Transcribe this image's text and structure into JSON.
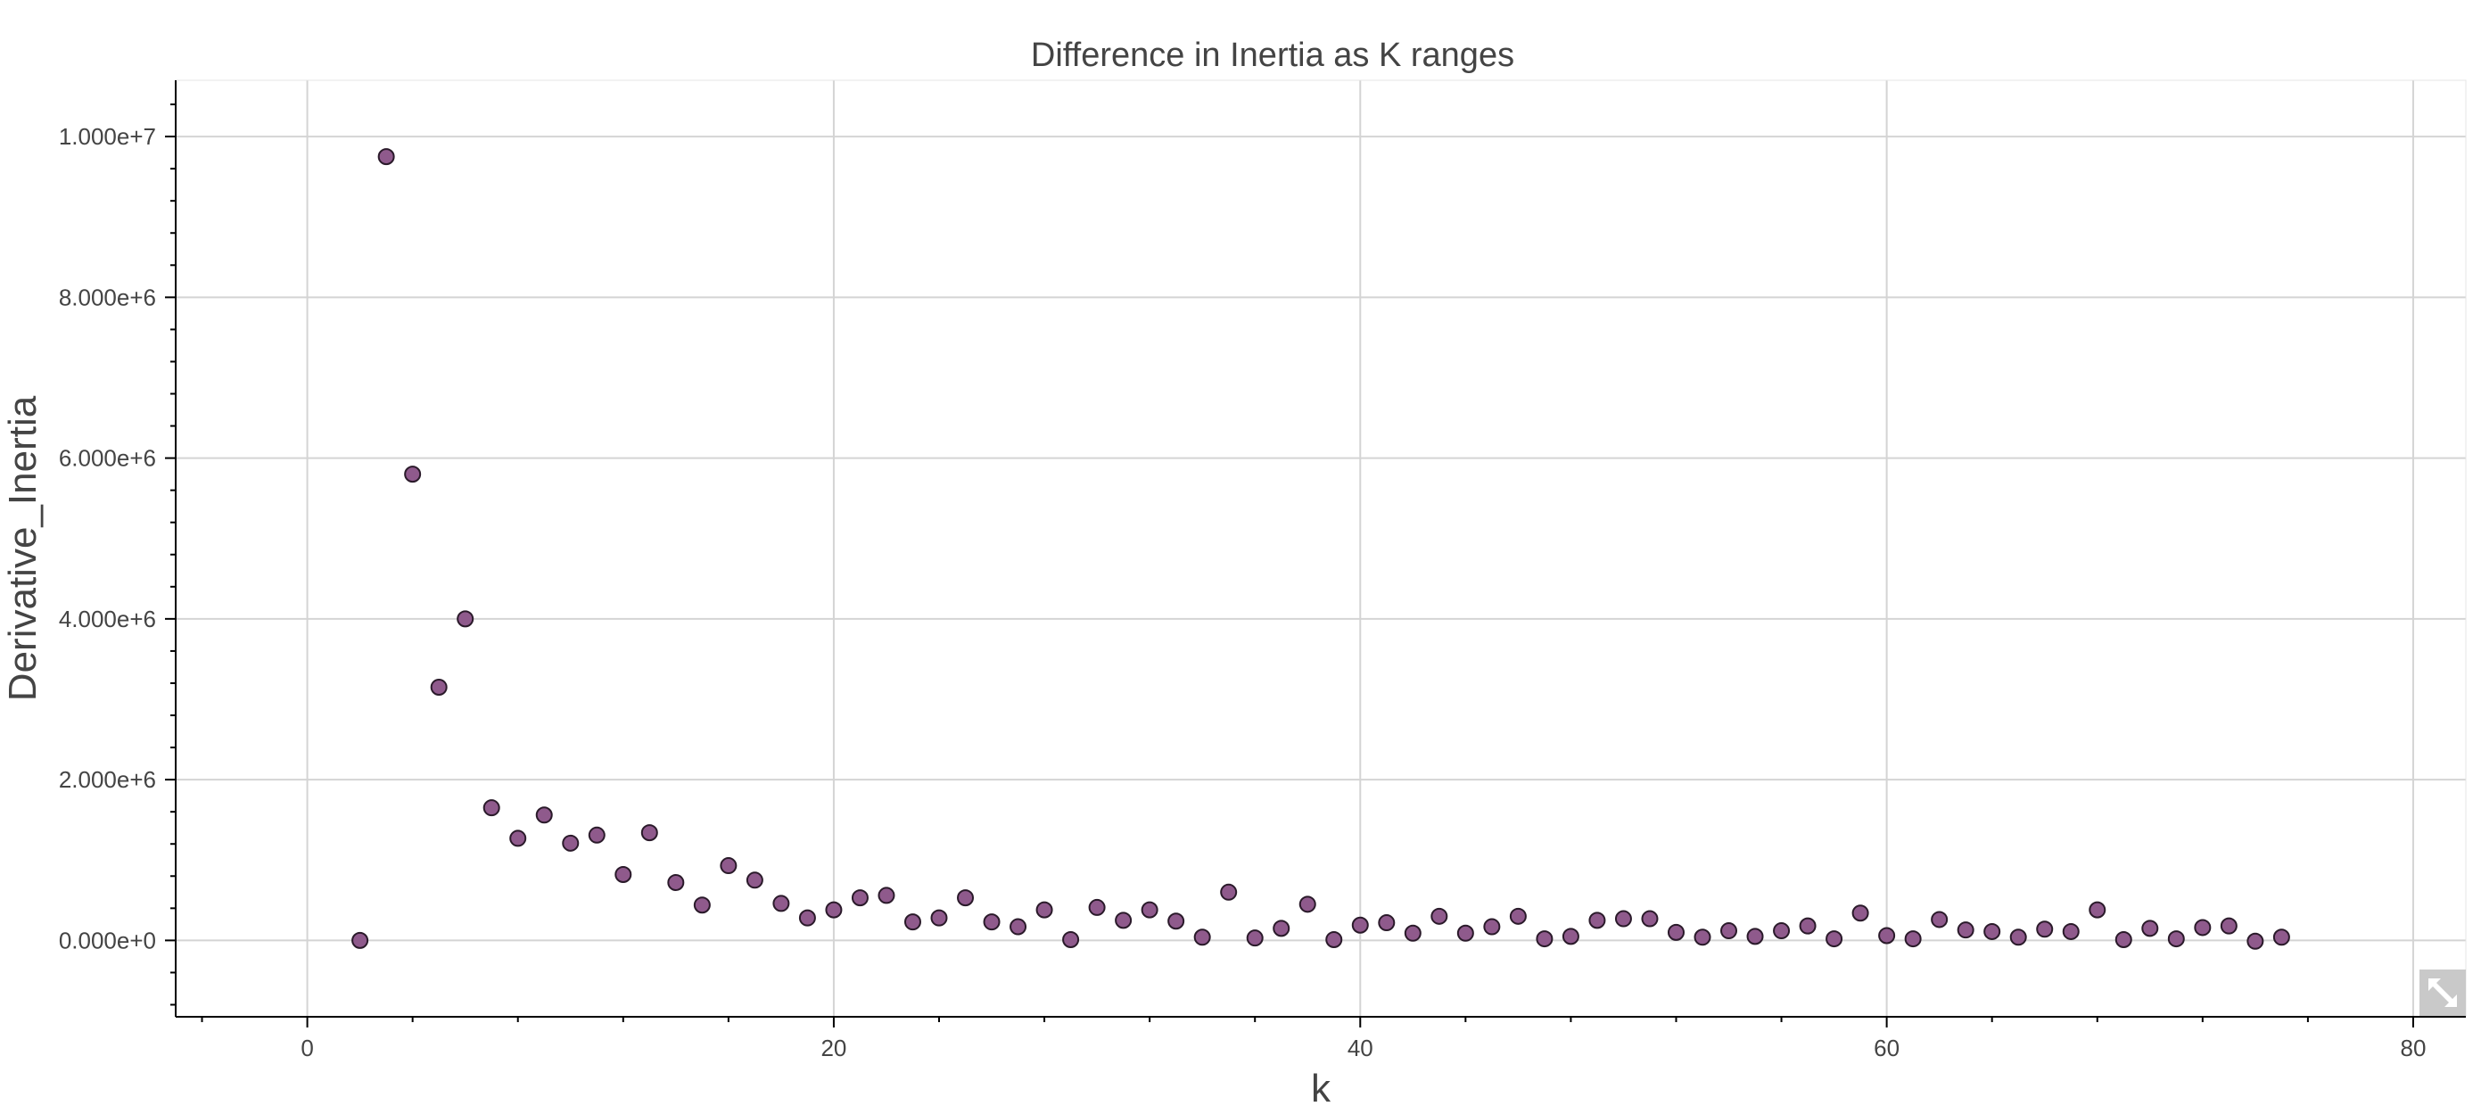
{
  "chart_data": {
    "type": "scatter",
    "title": "Difference in Inertia as K ranges",
    "xlabel": "k",
    "ylabel": "Derivative_Inertia",
    "xlim": [
      -5,
      82
    ],
    "ylim": [
      -950000,
      10700000
    ],
    "x_ticks": [
      0,
      20,
      40,
      60,
      80
    ],
    "x_tick_labels": [
      "0",
      "20",
      "40",
      "60",
      "80"
    ],
    "y_ticks": [
      0,
      2000000,
      4000000,
      6000000,
      8000000,
      10000000
    ],
    "y_tick_labels": [
      "0.000e+0",
      "2.000e+6",
      "4.000e+6",
      "6.000e+6",
      "8.000e+6",
      "1.000e+7"
    ],
    "grid": true,
    "marker_color": "#8f5a8c",
    "points": [
      [
        2,
        0
      ],
      [
        3,
        9750000
      ],
      [
        4,
        5800000
      ],
      [
        5,
        3150000
      ],
      [
        6,
        4000000
      ],
      [
        7,
        1650000
      ],
      [
        8,
        1270000
      ],
      [
        9,
        1560000
      ],
      [
        10,
        1210000
      ],
      [
        11,
        1310000
      ],
      [
        12,
        820000
      ],
      [
        13,
        1340000
      ],
      [
        14,
        720000
      ],
      [
        15,
        440000
      ],
      [
        16,
        930000
      ],
      [
        17,
        750000
      ],
      [
        18,
        460000
      ],
      [
        19,
        280000
      ],
      [
        20,
        380000
      ],
      [
        21,
        530000
      ],
      [
        22,
        560000
      ],
      [
        23,
        230000
      ],
      [
        24,
        280000
      ],
      [
        25,
        530000
      ],
      [
        26,
        230000
      ],
      [
        27,
        170000
      ],
      [
        28,
        380000
      ],
      [
        29,
        10000
      ],
      [
        30,
        410000
      ],
      [
        31,
        250000
      ],
      [
        32,
        380000
      ],
      [
        33,
        240000
      ],
      [
        34,
        40000
      ],
      [
        35,
        600000
      ],
      [
        36,
        30000
      ],
      [
        37,
        150000
      ],
      [
        38,
        450000
      ],
      [
        39,
        10000
      ],
      [
        40,
        190000
      ],
      [
        41,
        220000
      ],
      [
        42,
        90000
      ],
      [
        43,
        300000
      ],
      [
        44,
        90000
      ],
      [
        45,
        170000
      ],
      [
        46,
        300000
      ],
      [
        47,
        20000
      ],
      [
        48,
        50000
      ],
      [
        49,
        250000
      ],
      [
        50,
        270000
      ],
      [
        51,
        270000
      ],
      [
        52,
        100000
      ],
      [
        53,
        40000
      ],
      [
        54,
        120000
      ],
      [
        55,
        50000
      ],
      [
        56,
        120000
      ],
      [
        57,
        180000
      ],
      [
        58,
        20000
      ],
      [
        59,
        340000
      ],
      [
        60,
        60000
      ],
      [
        61,
        20000
      ],
      [
        62,
        260000
      ],
      [
        63,
        130000
      ],
      [
        64,
        110000
      ],
      [
        65,
        40000
      ],
      [
        66,
        140000
      ],
      [
        67,
        110000
      ],
      [
        68,
        380000
      ],
      [
        69,
        10000
      ],
      [
        70,
        150000
      ],
      [
        71,
        20000
      ],
      [
        72,
        160000
      ],
      [
        73,
        180000
      ],
      [
        74,
        -10000
      ],
      [
        75,
        40000
      ]
    ]
  },
  "toolbar": {
    "expand_icon": "expand-icon"
  }
}
